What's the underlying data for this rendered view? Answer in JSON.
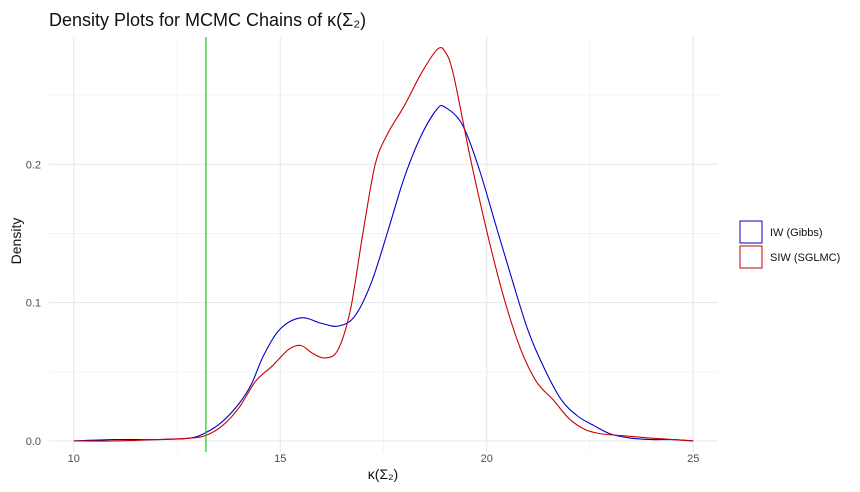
{
  "chart_data": {
    "type": "line",
    "title": "Density Plots for MCMC Chains of κ(Σ₂)",
    "xlabel": "κ(Σ₂)",
    "ylabel": "Density",
    "xlim": [
      9.4,
      25.6
    ],
    "ylim": [
      -0.008,
      0.292
    ],
    "x_ticks": [
      10,
      15,
      20,
      25
    ],
    "y_ticks": [
      0.0,
      0.1,
      0.2
    ],
    "y_tick_labels": [
      "0.0",
      "0.1",
      "0.2"
    ],
    "grid": true,
    "legend_position": "right",
    "vline": {
      "x": 13.2,
      "color": "#00cc00"
    },
    "series": [
      {
        "name": "IW (Gibbs)",
        "color": "#0000cc",
        "x": [
          10.0,
          11.0,
          12.0,
          12.8,
          13.2,
          13.6,
          14.0,
          14.3,
          14.6,
          15.0,
          15.5,
          16.0,
          16.4,
          16.8,
          17.2,
          17.6,
          18.0,
          18.4,
          18.8,
          19.0,
          19.4,
          19.8,
          20.2,
          20.6,
          21.0,
          21.4,
          21.8,
          22.2,
          22.6,
          23.0,
          23.5,
          24.0,
          24.5,
          25.0
        ],
        "y": [
          0.0,
          0.001,
          0.001,
          0.002,
          0.006,
          0.014,
          0.027,
          0.041,
          0.062,
          0.081,
          0.089,
          0.085,
          0.083,
          0.09,
          0.114,
          0.151,
          0.19,
          0.22,
          0.24,
          0.241,
          0.229,
          0.198,
          0.158,
          0.118,
          0.08,
          0.052,
          0.03,
          0.018,
          0.011,
          0.005,
          0.002,
          0.001,
          0.001,
          0.0
        ]
      },
      {
        "name": "SIW (SGLMC)",
        "color": "#cc0000",
        "x": [
          10.0,
          11.0,
          12.0,
          12.8,
          13.2,
          13.6,
          14.0,
          14.4,
          14.8,
          15.2,
          15.5,
          15.8,
          16.1,
          16.4,
          16.7,
          17.0,
          17.3,
          17.6,
          18.0,
          18.4,
          18.8,
          19.0,
          19.2,
          19.6,
          20.0,
          20.4,
          20.8,
          21.2,
          21.6,
          22.0,
          22.4,
          22.8,
          23.2,
          23.6,
          24.0,
          24.5,
          25.0
        ],
        "y": [
          0.0,
          0.0,
          0.001,
          0.002,
          0.004,
          0.011,
          0.024,
          0.043,
          0.054,
          0.066,
          0.069,
          0.063,
          0.06,
          0.066,
          0.095,
          0.15,
          0.2,
          0.222,
          0.242,
          0.265,
          0.283,
          0.281,
          0.264,
          0.205,
          0.152,
          0.105,
          0.068,
          0.043,
          0.03,
          0.016,
          0.008,
          0.005,
          0.004,
          0.003,
          0.002,
          0.001,
          0.0
        ]
      }
    ]
  }
}
